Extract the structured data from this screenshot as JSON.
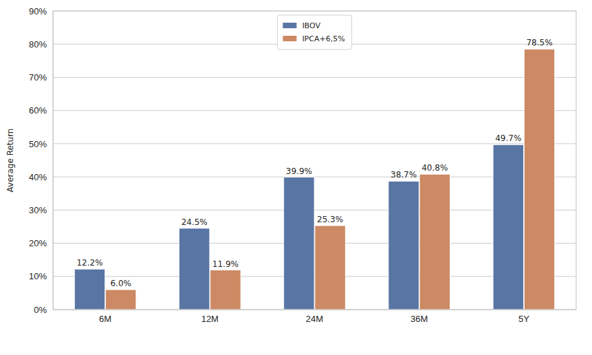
{
  "chart_data": {
    "type": "bar",
    "y_label": "Average Return",
    "categories": [
      "6M",
      "12M",
      "24M",
      "36M",
      "5Y"
    ],
    "series": [
      {
        "name": "IBOV",
        "color": "#5975a4",
        "values": [
          12.2,
          24.5,
          39.9,
          38.7,
          49.7
        ],
        "value_labels": [
          "12.2%",
          "24.5%",
          "39.9%",
          "38.7%",
          "49.7%"
        ]
      },
      {
        "name": "IPCA+6,5%",
        "color": "#cc8963",
        "values": [
          6.0,
          11.9,
          25.3,
          40.8,
          78.5
        ],
        "value_labels": [
          "6.0%",
          "11.9%",
          "25.3%",
          "40.8%",
          "78.5%"
        ]
      }
    ],
    "ylim": [
      0,
      90
    ],
    "yticks": [
      {
        "value": 0,
        "label": "0%"
      },
      {
        "value": 10,
        "label": "10%"
      },
      {
        "value": 20,
        "label": "20%"
      },
      {
        "value": 30,
        "label": "30%"
      },
      {
        "value": 40,
        "label": "40%"
      },
      {
        "value": 50,
        "label": "50%"
      },
      {
        "value": 60,
        "label": "60%"
      },
      {
        "value": 70,
        "label": "70%"
      },
      {
        "value": 80,
        "label": "80%"
      },
      {
        "value": 90,
        "label": "90%"
      }
    ],
    "grid": true,
    "legend": "upper center",
    "data_labels": true
  }
}
